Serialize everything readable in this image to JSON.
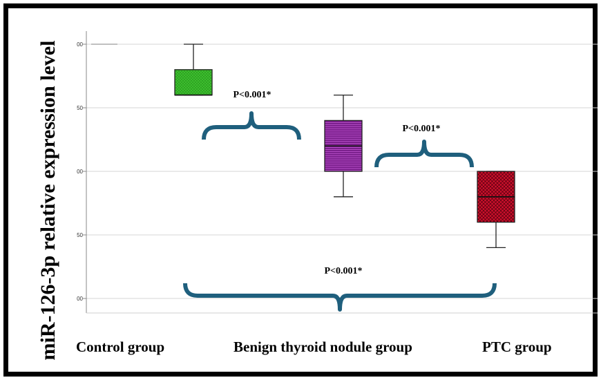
{
  "chart_data": {
    "type": "box",
    "ylabel": "miR-126-3p relative expression level",
    "y_tick_labels": [
      "00",
      "50",
      "00",
      "50",
      "00"
    ],
    "grid": true,
    "categories": [
      "Control group",
      "Benign thyroid nodule group",
      "PTC group"
    ],
    "boxes": [
      {
        "category": "Control group",
        "whisker_low": 0.8,
        "q1": 0.8,
        "median": 0.8,
        "q3": 0.9,
        "whisker_high": 1.0,
        "color": "#3cbe2e"
      },
      {
        "category": "Benign thyroid nodule group",
        "whisker_low": 0.4,
        "q1": 0.5,
        "median": 0.6,
        "q3": 0.7,
        "whisker_high": 0.8,
        "color": "#7a1f8c"
      },
      {
        "category": "PTC group",
        "whisker_low": 0.2,
        "q1": 0.3,
        "median": 0.4,
        "q3": 0.5,
        "whisker_high": 0.5,
        "color": "#d0102c"
      }
    ],
    "annotations": [
      {
        "text": "P<0.001*",
        "between": [
          "Control group",
          "Benign thyroid nodule group"
        ]
      },
      {
        "text": "P<0.001*",
        "between": [
          "Benign thyroid nodule group",
          "PTC group"
        ]
      },
      {
        "text": "P<0.001*",
        "between": [
          "Control group",
          "PTC group"
        ]
      }
    ],
    "bracket_color": "#1f5f7d"
  }
}
